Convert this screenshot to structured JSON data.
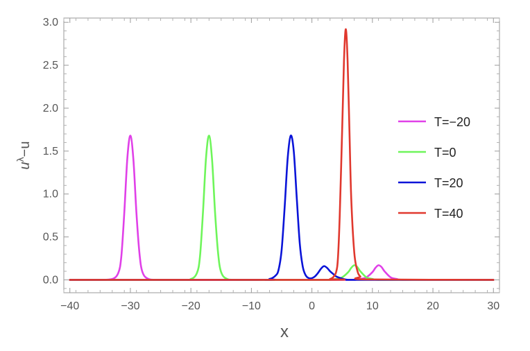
{
  "chart_data": {
    "type": "line",
    "xlabel": "x",
    "ylabel_base": "u",
    "ylabel_sup": "λ",
    "ylabel_tail": "−u",
    "xlim": [
      -41,
      31
    ],
    "ylim": [
      -0.15,
      3.05
    ],
    "x_ticks": [
      -40,
      -30,
      -20,
      -10,
      0,
      10,
      20,
      30
    ],
    "x_tick_labels": [
      "−40",
      "−30",
      "−20",
      "−10",
      "0",
      "10",
      "20",
      "30"
    ],
    "y_ticks": [
      0.0,
      0.5,
      1.0,
      1.5,
      2.0,
      2.5,
      3.0
    ],
    "y_tick_labels": [
      "0.0",
      "0.5",
      "1.0",
      "1.5",
      "2.0",
      "2.5",
      "3.0"
    ],
    "grid": false,
    "legend_position": "right",
    "series": [
      {
        "name": "T=−20",
        "color": "#e040e8",
        "x": [
          -40,
          -35,
          -33,
          -32,
          -31.5,
          -31,
          -30.5,
          -30,
          -29.5,
          -29,
          -28.5,
          -28,
          -27,
          -25,
          -15,
          5,
          7,
          8,
          9,
          10,
          10.5,
          11,
          11.5,
          12,
          13,
          14,
          15,
          20,
          30
        ],
        "y": [
          0,
          0,
          0.01,
          0.08,
          0.27,
          0.79,
          1.42,
          1.68,
          1.4,
          0.78,
          0.31,
          0.09,
          0.01,
          0,
          0,
          0,
          0,
          0.01,
          0.03,
          0.09,
          0.14,
          0.17,
          0.15,
          0.1,
          0.03,
          0.01,
          0,
          0,
          0
        ]
      },
      {
        "name": "T=0",
        "color": "#6ef55a",
        "x": [
          -40,
          -22,
          -20,
          -19,
          -18.5,
          -18,
          -17.5,
          -17,
          -16.5,
          -16,
          -15.5,
          -15,
          -14,
          -12,
          0,
          2,
          3,
          4,
          5,
          6,
          6.5,
          7,
          7.5,
          8,
          9,
          10,
          11,
          16,
          30
        ],
        "y": [
          0,
          0,
          0.01,
          0.08,
          0.27,
          0.79,
          1.42,
          1.68,
          1.4,
          0.78,
          0.31,
          0.09,
          0.01,
          0,
          0,
          0,
          0,
          0.01,
          0.03,
          0.09,
          0.14,
          0.17,
          0.15,
          0.1,
          0.03,
          0.01,
          0,
          0,
          0
        ]
      },
      {
        "name": "T=20",
        "color": "#0a14d8",
        "x": [
          -40,
          -9,
          -7,
          -6,
          -5.5,
          -5,
          -4.5,
          -4,
          -3.5,
          -3,
          -2.5,
          -2,
          -1.5,
          -1,
          -0.5,
          0,
          0.5,
          1,
          1.5,
          2,
          2.5,
          3,
          3.5,
          4,
          5,
          6,
          8,
          30
        ],
        "y": [
          0,
          0,
          0.01,
          0.05,
          0.12,
          0.35,
          0.85,
          1.42,
          1.68,
          1.5,
          0.95,
          0.42,
          0.15,
          0.05,
          0.02,
          0.02,
          0.04,
          0.08,
          0.13,
          0.16,
          0.14,
          0.1,
          0.07,
          0.04,
          0.015,
          0,
          0,
          0
        ]
      },
      {
        "name": "T=40",
        "color": "#e0382e",
        "x": [
          -40,
          2,
          3,
          3.5,
          4,
          4.3,
          4.6,
          5,
          5.3,
          5.6,
          5.9,
          6.2,
          6.5,
          7,
          7.5,
          8,
          9,
          30
        ],
        "y": [
          0,
          0,
          0.01,
          0.03,
          0.09,
          0.25,
          0.75,
          1.75,
          2.55,
          2.92,
          2.55,
          1.75,
          0.95,
          0.32,
          0.11,
          0.04,
          0.005,
          0
        ]
      }
    ]
  }
}
